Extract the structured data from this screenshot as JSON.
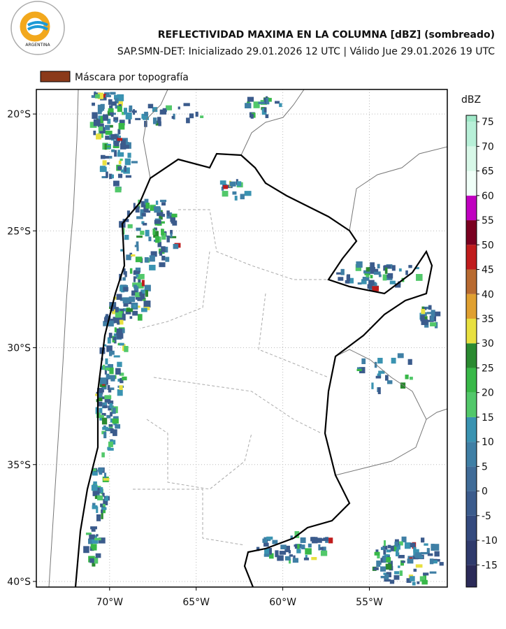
{
  "map": {
    "logo_text": "ARGENTINA",
    "title": "REFLECTIVIDAD MAXIMA EN LA COLUMNA [dBZ] (sombreado)",
    "subtitle": "SAP.SMN-DET: Inicializado 29.01.2026 12 UTC | Válido Jue 29.01.2026 19 UTC",
    "mask_legend": {
      "label": "Máscara por topografía",
      "color": "#8b3a1a"
    },
    "lonlim": [
      -74.23,
      -50.5
    ],
    "latlim": [
      -40.24,
      -18.95
    ],
    "lonticks": [
      {
        "value": -70,
        "label": "70°W"
      },
      {
        "value": -65,
        "label": "65°W"
      },
      {
        "value": -60,
        "label": "60°W"
      },
      {
        "value": -55,
        "label": "55°W"
      }
    ],
    "latticks": [
      {
        "value": -20,
        "label": "20°S"
      },
      {
        "value": -25,
        "label": "25°S"
      },
      {
        "value": -30,
        "label": "30°S"
      },
      {
        "value": -35,
        "label": "35°S"
      },
      {
        "value": -40,
        "label": "40°S"
      }
    ],
    "grid": true,
    "colorbar": {
      "label": "dBZ",
      "clim": [
        -19.5,
        76.3
      ],
      "bounds": [
        -20,
        -15,
        -10,
        -5,
        0,
        5,
        10,
        15,
        20,
        25,
        30,
        35,
        40,
        45,
        50,
        55,
        60,
        65,
        70,
        75,
        80
      ],
      "colors": [
        "#2b2a58",
        "#2f3a6c",
        "#344a7e",
        "#3b5b8c",
        "#406c98",
        "#3f7fa5",
        "#3a93b1",
        "#52c86a",
        "#38b848",
        "#2a8a30",
        "#e8e040",
        "#e0a030",
        "#b86a30",
        "#c01c1c",
        "#7a0020",
        "#c000c0",
        "#f0fff8",
        "#d8f8e8",
        "#b8f0d8",
        "#a0e8c8"
      ],
      "ticks": [
        75,
        70,
        65,
        60,
        55,
        50,
        45,
        40,
        35,
        30,
        25,
        20,
        15,
        10,
        5,
        0,
        -5,
        -10,
        -15
      ]
    }
  }
}
